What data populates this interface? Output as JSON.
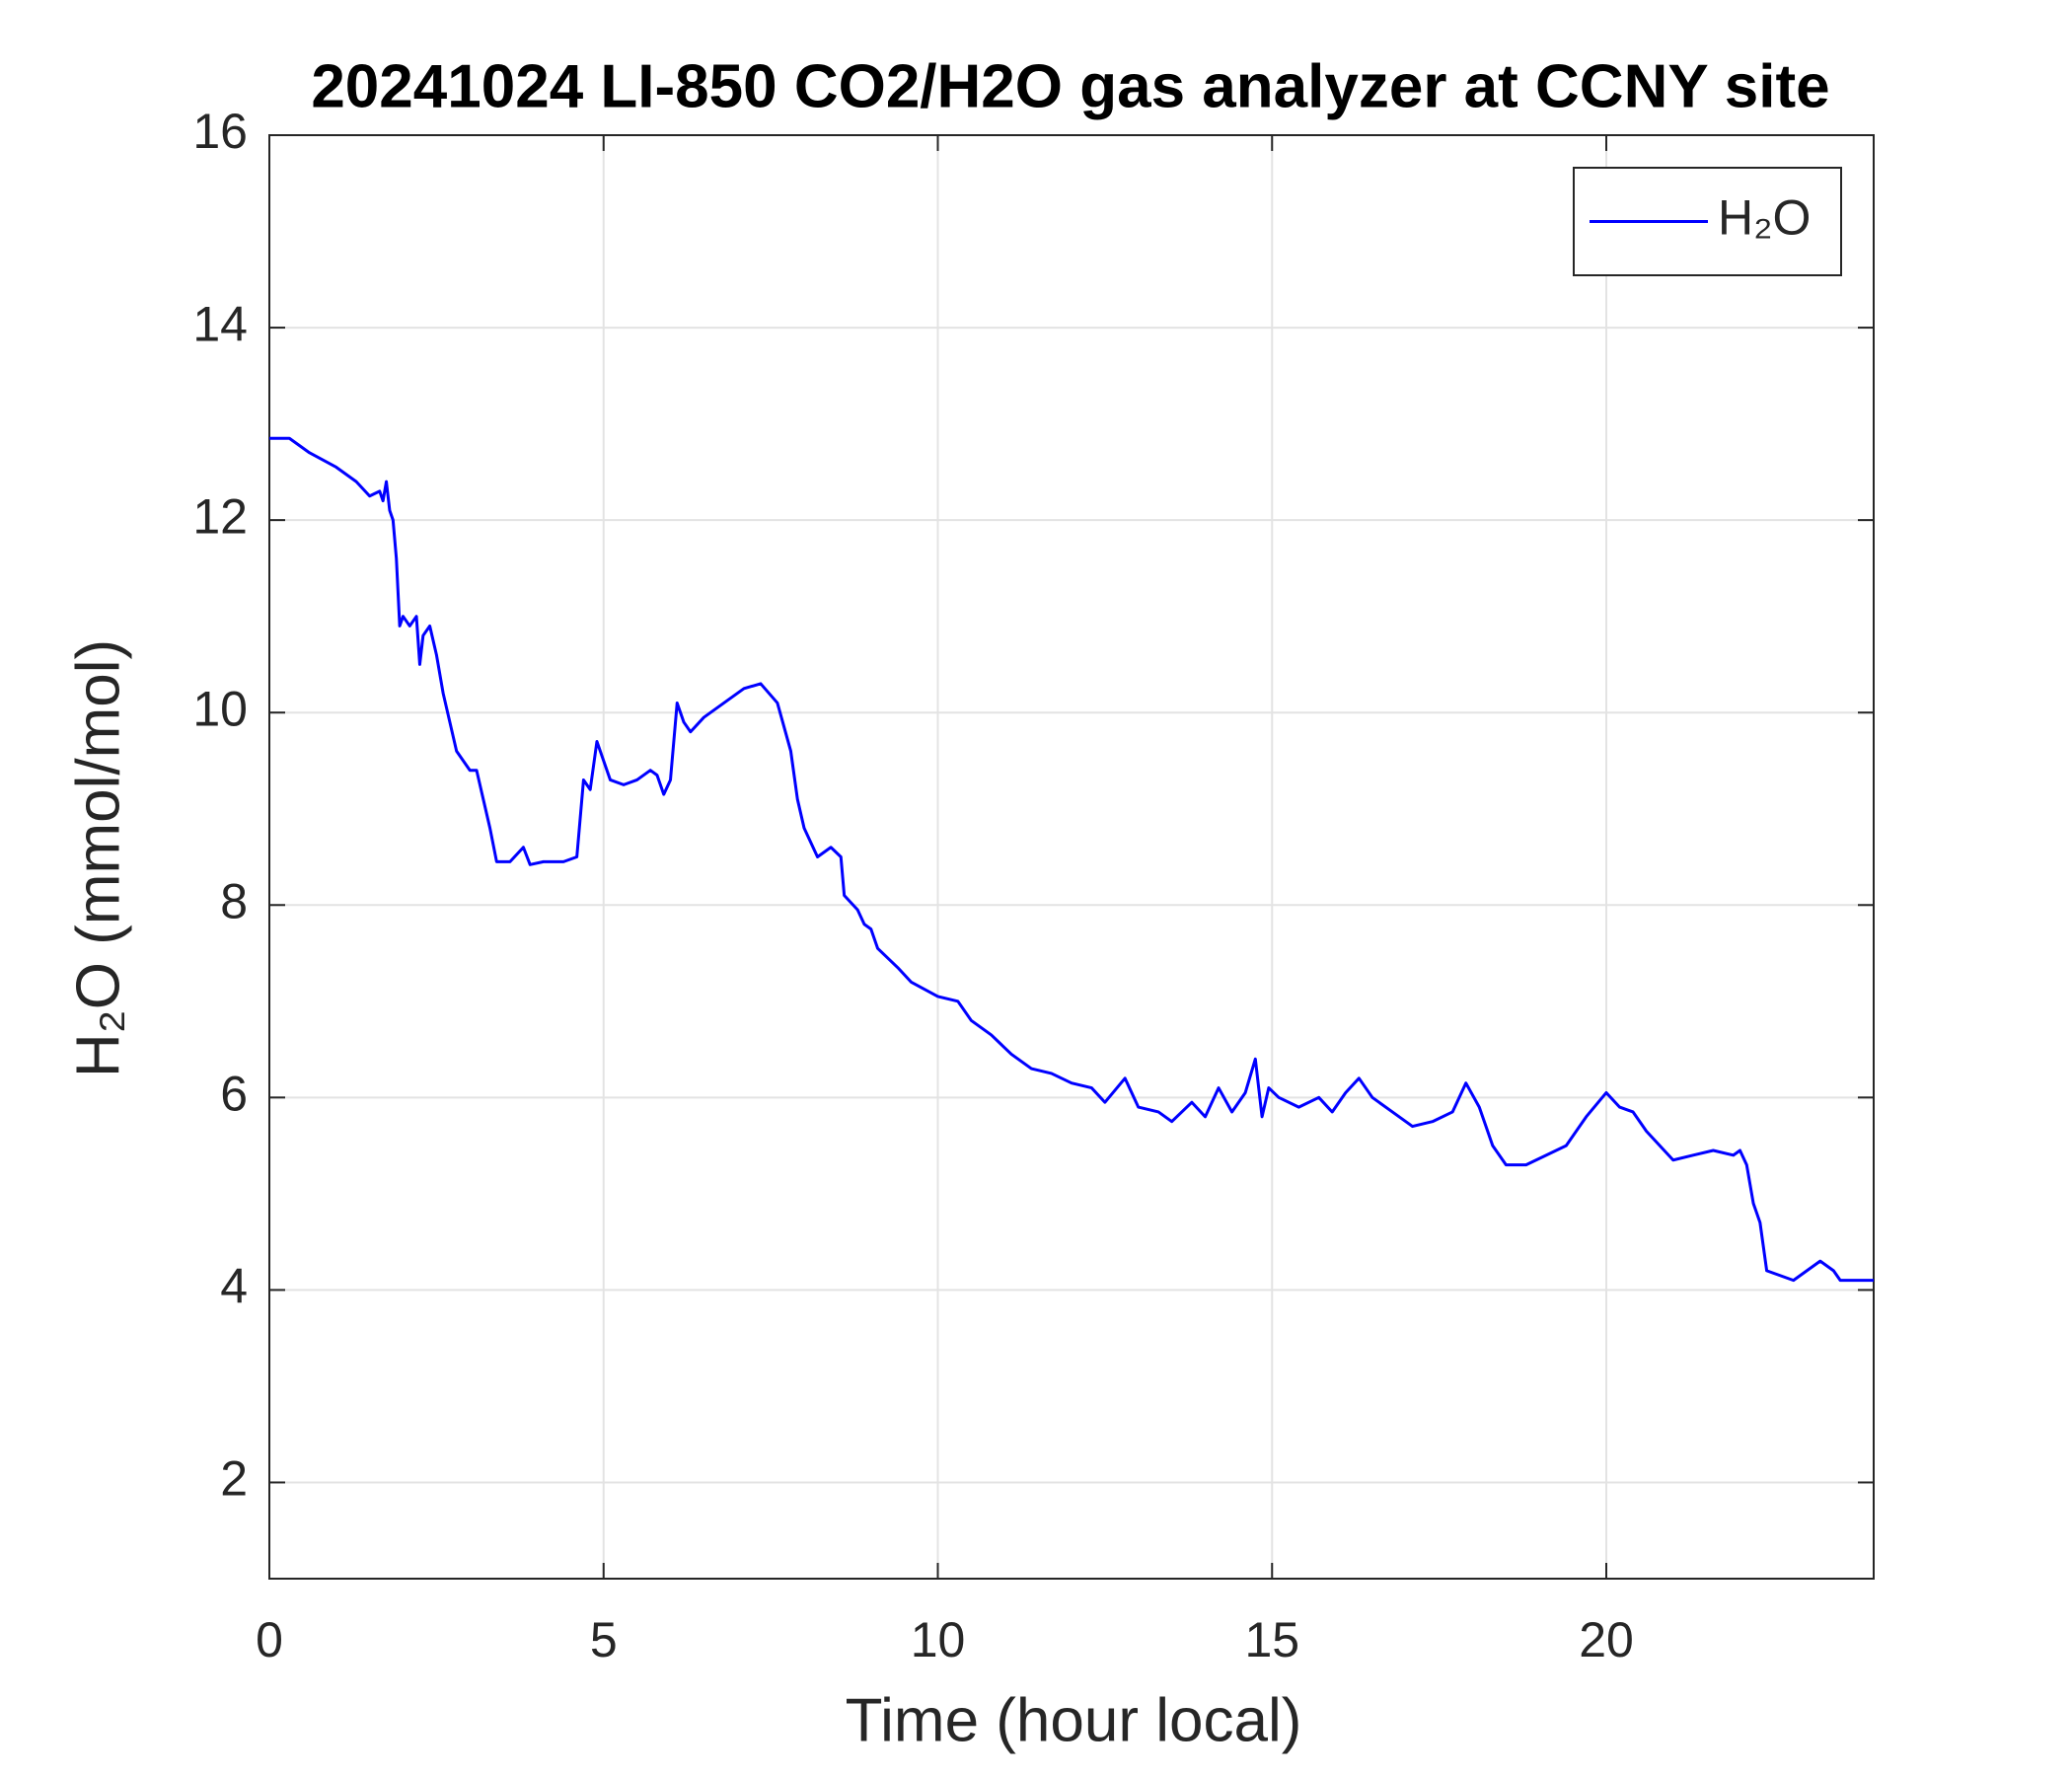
{
  "chart_data": {
    "type": "line",
    "title": "20241024 LI-850 CO2/H2O gas analyzer at CCNY site",
    "x_label": "Time (hour local)",
    "y_label": "H₂O (mmol/mol)",
    "x": [
      0,
      0.3,
      0.6,
      1.0,
      1.3,
      1.5,
      1.65,
      1.7,
      1.75,
      1.8,
      1.85,
      1.9,
      1.95,
      2.0,
      2.1,
      2.2,
      2.25,
      2.3,
      2.4,
      2.5,
      2.6,
      2.7,
      2.8,
      2.9,
      3.0,
      3.1,
      3.2,
      3.3,
      3.4,
      3.6,
      3.8,
      3.9,
      4.1,
      4.4,
      4.6,
      4.7,
      4.8,
      4.9,
      5.0,
      5.1,
      5.3,
      5.5,
      5.7,
      5.8,
      5.9,
      6.0,
      6.1,
      6.2,
      6.3,
      6.5,
      6.8,
      7.1,
      7.35,
      7.6,
      7.8,
      7.9,
      8.0,
      8.2,
      8.4,
      8.55,
      8.6,
      8.8,
      8.9,
      9.0,
      9.1,
      9.4,
      9.6,
      10.0,
      10.3,
      10.5,
      10.8,
      11.1,
      11.4,
      11.7,
      12.0,
      12.3,
      12.5,
      12.8,
      13.0,
      13.3,
      13.5,
      13.8,
      14.0,
      14.2,
      14.4,
      14.6,
      14.75,
      14.85,
      14.95,
      15.1,
      15.4,
      15.7,
      15.9,
      16.1,
      16.3,
      16.5,
      16.8,
      17.1,
      17.4,
      17.7,
      17.9,
      18.1,
      18.3,
      18.5,
      18.8,
      19.1,
      19.4,
      19.7,
      20.0,
      20.2,
      20.4,
      20.6,
      20.8,
      21.0,
      21.3,
      21.6,
      21.9,
      22.0,
      22.1,
      22.2,
      22.3,
      22.4,
      22.6,
      22.8,
      23.0,
      23.2,
      23.4,
      23.5,
      23.8,
      24.0
    ],
    "series": [
      {
        "name": "H₂O",
        "color": "#0000ff",
        "values": [
          12.85,
          12.85,
          12.7,
          12.55,
          12.4,
          12.25,
          12.3,
          12.2,
          12.4,
          12.1,
          12.0,
          11.6,
          10.9,
          11.0,
          10.9,
          11.0,
          10.5,
          10.8,
          10.9,
          10.6,
          10.2,
          9.9,
          9.6,
          9.5,
          9.4,
          9.4,
          9.1,
          8.8,
          8.45,
          8.45,
          8.6,
          8.42,
          8.45,
          8.45,
          8.5,
          9.3,
          9.2,
          9.7,
          9.5,
          9.3,
          9.25,
          9.3,
          9.4,
          9.35,
          9.15,
          9.3,
          10.1,
          9.9,
          9.8,
          9.95,
          10.1,
          10.25,
          10.3,
          10.1,
          9.6,
          9.1,
          8.8,
          8.5,
          8.6,
          8.5,
          8.1,
          7.95,
          7.8,
          7.75,
          7.55,
          7.35,
          7.2,
          7.05,
          7.0,
          6.8,
          6.65,
          6.45,
          6.3,
          6.25,
          6.15,
          6.1,
          5.95,
          6.2,
          5.9,
          5.85,
          5.75,
          5.95,
          5.8,
          6.1,
          5.85,
          6.05,
          6.4,
          5.8,
          6.1,
          6.0,
          5.9,
          6.0,
          5.85,
          6.05,
          6.2,
          6.0,
          5.85,
          5.7,
          5.75,
          5.85,
          6.15,
          5.9,
          5.5,
          5.3,
          5.3,
          5.4,
          5.5,
          5.8,
          6.05,
          5.9,
          5.85,
          5.65,
          5.5,
          5.35,
          5.4,
          5.45,
          5.4,
          5.45,
          5.3,
          4.9,
          4.7,
          4.2,
          4.15,
          4.1,
          4.2,
          4.3,
          4.2,
          4.1,
          4.1,
          4.1
        ]
      }
    ],
    "xlim": [
      0,
      24
    ],
    "ylim": [
      1,
      16
    ],
    "xticks": [
      0,
      5,
      10,
      15,
      20
    ],
    "yticks": [
      2,
      4,
      6,
      8,
      10,
      12,
      14,
      16
    ],
    "grid": true,
    "legend": "northeast"
  }
}
